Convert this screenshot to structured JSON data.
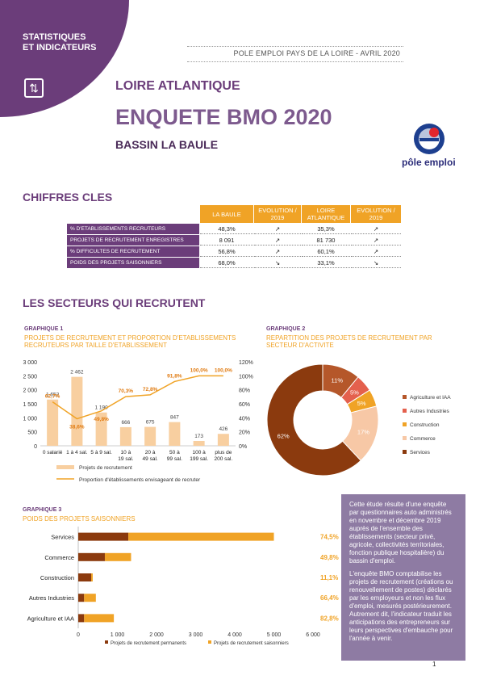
{
  "colors": {
    "purple": "#6b3d7a",
    "orange": "#f0a326",
    "light_orange": "#f8cfa0",
    "dark_brown": "#8b3a0e",
    "brown": "#b5572a",
    "red_orange": "#e4604d",
    "peach": "#f7c8a6"
  },
  "header": {
    "badge_line1": "STATISTIQUES",
    "badge_line2": "ET INDICATEURS",
    "badge_icon": "refresh-arrows-icon",
    "source": "POLE EMPLOI PAYS DE LA LOIRE - AVRIL 2020",
    "region": "LOIRE ATLANTIQUE",
    "title": "ENQUETE BMO 2020",
    "bassin": "BASSIN   LA BAULE",
    "logo_text": "pôle emploi"
  },
  "key_figures": {
    "section_title": "CHIFFRES CLES",
    "columns": [
      "LA BAULE",
      "EVOLUTION / 2019",
      "LOIRE ATLANTIQUE",
      "EVOLUTION / 2019"
    ],
    "rows": [
      {
        "label": "% D'ETABLISSEMENTS RECRUTEURS",
        "baule": "48,3%",
        "evo1": "↗",
        "loire": "35,3%",
        "evo2": "↗"
      },
      {
        "label": "PROJETS DE RECRUTEMENT ENREGISTRES",
        "baule": "8 091",
        "evo1": "↗",
        "loire": "81 730",
        "evo2": "↗"
      },
      {
        "label": "% DIFFICULTES DE RECRUTEMENT",
        "baule": "56,8%",
        "evo1": "↗",
        "loire": "60,1%",
        "evo2": "↗"
      },
      {
        "label": "POIDS DES PROJETS SAISONNIERS",
        "baule": "68,0%",
        "evo1": "↘",
        "loire": "33,1%",
        "evo2": "↘"
      }
    ]
  },
  "sectors": {
    "section_title": "LES SECTEURS QUI RECRUTENT"
  },
  "graph1": {
    "label": "GRAPHIQUE 1",
    "title_line1": "PROJETS DE RECRUTEMENT ET PROPORTION D'ETABLISSEMENTS",
    "title_line2": "RECRUTEURS PAR TAILLE D'ETABLISSEMENT",
    "legend_bar": "Projets de recrutement",
    "legend_line": "Proportion d'établissements envisageant de recruter"
  },
  "graph2": {
    "label": "GRAPHIQUE 2",
    "title_line1": "REPARTITION DES PROJETS DE RECRUTEMENT PAR",
    "title_line2": "SECTEUR D'ACTIVITE"
  },
  "graph3": {
    "label": "GRAPHIQUE 3",
    "title": "POIDS DES PROJETS SAISONNIERS",
    "legend_perm": "Projets de recrutement permanents",
    "legend_seas": "Projets de recrutement saisonniers"
  },
  "chart_data": [
    {
      "type": "bar",
      "categories": [
        "0 salarié",
        "1 à 4 sal.",
        "5 à 9 sal.",
        "10 à 19 sal.",
        "20 à 49 sal.",
        "50 à 99 sal.",
        "100 à 199 sal.",
        "plus de 200 sal."
      ],
      "series": [
        {
          "name": "Projets de recrutement",
          "type": "bar",
          "values": [
            1652,
            2462,
            1190,
            666,
            675,
            847,
            173,
            426
          ],
          "labels": [
            "1 652",
            "2 462",
            "1 190",
            "666",
            "675",
            "847",
            "173",
            "426"
          ]
        },
        {
          "name": "Proportion d'établissements envisageant de recruter",
          "type": "line",
          "values": [
            62.7,
            38.6,
            49.8,
            70.3,
            72.8,
            91.8,
            100.0,
            100.0
          ],
          "labels": [
            "62,7%",
            "38,6%",
            "49,8%",
            "70,3%",
            "72,8%",
            "91,8%",
            "100,0%",
            "100,0%"
          ]
        }
      ],
      "ylim": [
        0,
        3000
      ],
      "y_ticks": [
        "0",
        "500",
        "1 000",
        "1 500",
        "2 000",
        "2 500",
        "3 000"
      ],
      "y2lim": [
        0,
        120
      ],
      "y2_ticks": [
        "0%",
        "20%",
        "40%",
        "60%",
        "80%",
        "100%",
        "120%"
      ],
      "legend": "bottom"
    },
    {
      "type": "pie",
      "categories": [
        "Agriculture et IAA",
        "Autres Industries",
        "Construction",
        "Commerce",
        "Services"
      ],
      "values": [
        11,
        5,
        5,
        17,
        62
      ],
      "labels": [
        "11%",
        "5%",
        "5%",
        "17%",
        "62%"
      ],
      "legend": "right"
    },
    {
      "type": "bar",
      "orientation": "horizontal",
      "stacked": true,
      "categories": [
        "Services",
        "Commerce",
        "Construction",
        "Autres Industries",
        "Agriculture et IAA"
      ],
      "series": [
        {
          "name": "Projets de recrutement permanents",
          "values": [
            1280,
            680,
            330,
            150,
            150
          ]
        },
        {
          "name": "Projets de recrutement saisonniers",
          "values": [
            3720,
            670,
            40,
            300,
            760
          ]
        }
      ],
      "percent_labels": [
        "74,5%",
        "49,8%",
        "11,1%",
        "66,4%",
        "82,8%"
      ],
      "xlim": [
        0,
        6000
      ],
      "x_ticks": [
        "0",
        "1 000",
        "2 000",
        "3 000",
        "4 000",
        "5 000",
        "6 000"
      ],
      "legend": "bottom"
    }
  ],
  "info_box": {
    "p1": "Cette étude résulte d'une enquête par questionnaires auto administrés en novembre et décembre 2019 auprès de l'ensemble des établissements (secteur privé, agricole, collectivités territoriales, fonction publique hospitalière) du bassin d'emploi.",
    "p2": "L'enquête BMO comptabilise les projets de recrutement (créations ou renouvellement de postes) déclarés par les employeurs et non les flux d'emploi, mesurés postérieurement. Autrement dit, l'indicateur traduit les anticipations des entrepreneurs sur leurs perspectives d'embauche pour l'année à venir."
  },
  "page_number": "1"
}
